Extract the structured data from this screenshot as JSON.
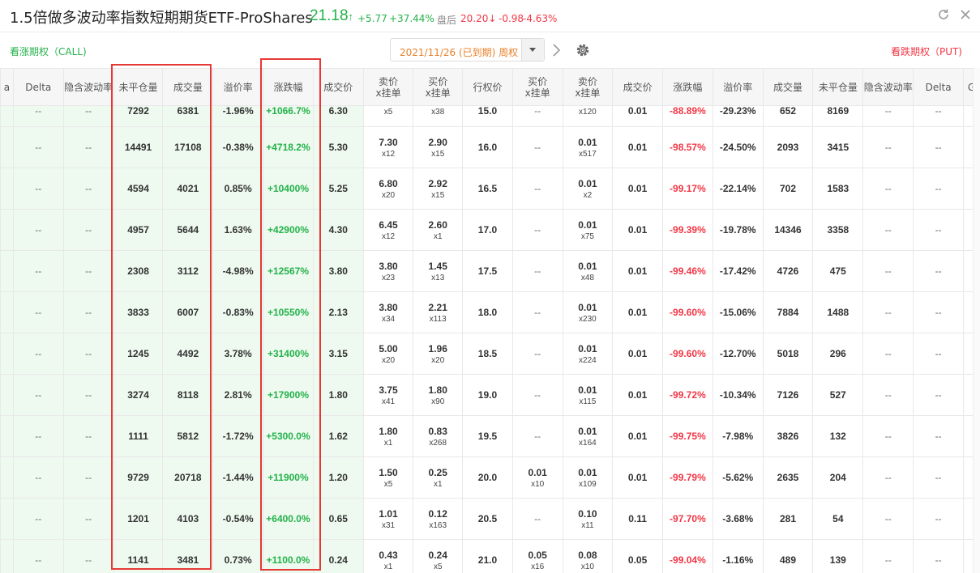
{
  "header": {
    "title": "1.5倍做多波动率指数短期期货ETF-ProShares",
    "last_price": "21.18",
    "change": "+5.77",
    "change_pct": "+37.44%",
    "after_label": "盘后",
    "after_price": "20.20",
    "after_change": "-0.98",
    "after_change_pct": "-4.63%"
  },
  "controls": {
    "call_label": "看涨期权（CALL)",
    "put_label": "看跌期权（PUT)",
    "expiry": "2021/11/26 (已到期) 周权"
  },
  "columns": [
    "a",
    "Delta",
    "隐含波动率",
    "未平仓量",
    "成交量",
    "溢价率",
    "涨跌幅",
    "成交价",
    "卖价\nx挂单",
    "买价\nx挂单",
    "行权价",
    "买价\nx挂单",
    "卖价\nx挂单",
    "成交价",
    "涨跌幅",
    "溢价率",
    "成交量",
    "未平仓量",
    "隐含波动率",
    "Delta",
    "G"
  ],
  "rows": [
    {
      "c_oi": "7292",
      "c_vol": "6381",
      "c_prem": "-1.96%",
      "c_chg": "+1066.7%",
      "c_last": "6.30",
      "c_ask": "",
      "c_ask_sz": "x5",
      "c_bid": "",
      "c_bid_sz": "x38",
      "strike": "15.0",
      "p_bid": "--",
      "p_bid_sz": "",
      "p_ask": "",
      "p_ask_sz": "x120",
      "p_last": "0.01",
      "p_chg": "-88.89%",
      "p_prem": "-29.23%",
      "p_vol": "652",
      "p_oi": "8169"
    },
    {
      "c_oi": "14491",
      "c_vol": "17108",
      "c_prem": "-0.38%",
      "c_chg": "+4718.2%",
      "c_last": "5.30",
      "c_ask": "7.30",
      "c_ask_sz": "x12",
      "c_bid": "2.90",
      "c_bid_sz": "x15",
      "strike": "16.0",
      "p_bid": "--",
      "p_bid_sz": "",
      "p_ask": "0.01",
      "p_ask_sz": "x517",
      "p_last": "0.01",
      "p_chg": "-98.57%",
      "p_prem": "-24.50%",
      "p_vol": "2093",
      "p_oi": "3415"
    },
    {
      "c_oi": "4594",
      "c_vol": "4021",
      "c_prem": "0.85%",
      "c_chg": "+10400%",
      "c_last": "5.25",
      "c_ask": "6.80",
      "c_ask_sz": "x20",
      "c_bid": "2.92",
      "c_bid_sz": "x15",
      "strike": "16.5",
      "p_bid": "--",
      "p_bid_sz": "",
      "p_ask": "0.01",
      "p_ask_sz": "x2",
      "p_last": "0.01",
      "p_chg": "-99.17%",
      "p_prem": "-22.14%",
      "p_vol": "702",
      "p_oi": "1583"
    },
    {
      "c_oi": "4957",
      "c_vol": "5644",
      "c_prem": "1.63%",
      "c_chg": "+42900%",
      "c_last": "4.30",
      "c_ask": "6.45",
      "c_ask_sz": "x12",
      "c_bid": "2.60",
      "c_bid_sz": "x1",
      "strike": "17.0",
      "p_bid": "--",
      "p_bid_sz": "",
      "p_ask": "0.01",
      "p_ask_sz": "x75",
      "p_last": "0.01",
      "p_chg": "-99.39%",
      "p_prem": "-19.78%",
      "p_vol": "14346",
      "p_oi": "3358"
    },
    {
      "c_oi": "2308",
      "c_vol": "3112",
      "c_prem": "-4.98%",
      "c_chg": "+12567%",
      "c_last": "3.80",
      "c_ask": "3.80",
      "c_ask_sz": "x23",
      "c_bid": "1.45",
      "c_bid_sz": "x13",
      "strike": "17.5",
      "p_bid": "--",
      "p_bid_sz": "",
      "p_ask": "0.01",
      "p_ask_sz": "x48",
      "p_last": "0.01",
      "p_chg": "-99.46%",
      "p_prem": "-17.42%",
      "p_vol": "4726",
      "p_oi": "475"
    },
    {
      "c_oi": "3833",
      "c_vol": "6007",
      "c_prem": "-0.83%",
      "c_chg": "+10550%",
      "c_last": "2.13",
      "c_ask": "3.80",
      "c_ask_sz": "x34",
      "c_bid": "2.21",
      "c_bid_sz": "x113",
      "strike": "18.0",
      "p_bid": "--",
      "p_bid_sz": "",
      "p_ask": "0.01",
      "p_ask_sz": "x230",
      "p_last": "0.01",
      "p_chg": "-99.60%",
      "p_prem": "-15.06%",
      "p_vol": "7884",
      "p_oi": "1488"
    },
    {
      "c_oi": "1245",
      "c_vol": "4492",
      "c_prem": "3.78%",
      "c_chg": "+31400%",
      "c_last": "3.15",
      "c_ask": "5.00",
      "c_ask_sz": "x20",
      "c_bid": "1.96",
      "c_bid_sz": "x20",
      "strike": "18.5",
      "p_bid": "--",
      "p_bid_sz": "",
      "p_ask": "0.01",
      "p_ask_sz": "x224",
      "p_last": "0.01",
      "p_chg": "-99.60%",
      "p_prem": "-12.70%",
      "p_vol": "5018",
      "p_oi": "296"
    },
    {
      "c_oi": "3274",
      "c_vol": "8118",
      "c_prem": "2.81%",
      "c_chg": "+17900%",
      "c_last": "1.80",
      "c_ask": "3.75",
      "c_ask_sz": "x41",
      "c_bid": "1.80",
      "c_bid_sz": "x90",
      "strike": "19.0",
      "p_bid": "--",
      "p_bid_sz": "",
      "p_ask": "0.01",
      "p_ask_sz": "x115",
      "p_last": "0.01",
      "p_chg": "-99.72%",
      "p_prem": "-10.34%",
      "p_vol": "7126",
      "p_oi": "527"
    },
    {
      "c_oi": "1111",
      "c_vol": "5812",
      "c_prem": "-1.72%",
      "c_chg": "+5300.0%",
      "c_last": "1.62",
      "c_ask": "1.80",
      "c_ask_sz": "x1",
      "c_bid": "0.83",
      "c_bid_sz": "x268",
      "strike": "19.5",
      "p_bid": "--",
      "p_bid_sz": "",
      "p_ask": "0.01",
      "p_ask_sz": "x164",
      "p_last": "0.01",
      "p_chg": "-99.75%",
      "p_prem": "-7.98%",
      "p_vol": "3826",
      "p_oi": "132"
    },
    {
      "c_oi": "9729",
      "c_vol": "20718",
      "c_prem": "-1.44%",
      "c_chg": "+11900%",
      "c_last": "1.20",
      "c_ask": "1.50",
      "c_ask_sz": "x5",
      "c_bid": "0.25",
      "c_bid_sz": "x1",
      "strike": "20.0",
      "p_bid": "0.01",
      "p_bid_sz": "x10",
      "p_ask": "0.01",
      "p_ask_sz": "x109",
      "p_last": "0.01",
      "p_chg": "-99.79%",
      "p_prem": "-5.62%",
      "p_vol": "2635",
      "p_oi": "204"
    },
    {
      "c_oi": "1201",
      "c_vol": "4103",
      "c_prem": "-0.54%",
      "c_chg": "+6400.0%",
      "c_last": "0.65",
      "c_ask": "1.01",
      "c_ask_sz": "x31",
      "c_bid": "0.12",
      "c_bid_sz": "x163",
      "strike": "20.5",
      "p_bid": "--",
      "p_bid_sz": "",
      "p_ask": "0.10",
      "p_ask_sz": "x11",
      "p_last": "0.11",
      "p_chg": "-97.70%",
      "p_prem": "-3.68%",
      "p_vol": "281",
      "p_oi": "54"
    },
    {
      "c_oi": "1141",
      "c_vol": "3481",
      "c_prem": "0.73%",
      "c_chg": "+1100.0%",
      "c_last": "0.24",
      "c_ask": "0.43",
      "c_ask_sz": "x1",
      "c_bid": "0.24",
      "c_bid_sz": "x5",
      "strike": "21.0",
      "p_bid": "0.05",
      "p_bid_sz": "x16",
      "p_ask": "0.08",
      "p_ask_sz": "x10",
      "p_last": "0.05",
      "p_chg": "-99.04%",
      "p_prem": "-1.16%",
      "p_vol": "489",
      "p_oi": "139"
    }
  ],
  "colors": {
    "up": "#24b24a",
    "down": "#f23645",
    "call_bg": "#eefaf0",
    "highlight": "#e53935"
  }
}
